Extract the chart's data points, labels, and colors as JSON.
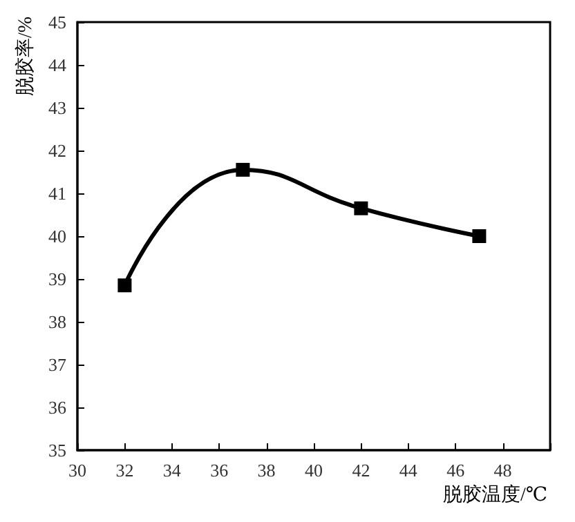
{
  "chart_data": {
    "type": "line",
    "xlabel": "脱胶温度/℃",
    "ylabel": "脱胶率/%",
    "x": [
      32,
      37,
      42,
      47
    ],
    "series": [
      {
        "color": "#000000",
        "values": [
          38.85,
          41.55,
          40.65,
          40.0
        ]
      }
    ],
    "xlim": [
      30,
      50
    ],
    "xticks": [
      30,
      32,
      34,
      36,
      38,
      40,
      42,
      44,
      46,
      48,
      {
        "value": 50,
        "label": null
      }
    ],
    "ylim": [
      35,
      45
    ],
    "yticks": [
      35,
      36,
      37,
      38,
      39,
      40,
      41,
      42,
      43,
      44,
      45
    ],
    "grid": false,
    "marker": "square",
    "line_style": "solid"
  }
}
